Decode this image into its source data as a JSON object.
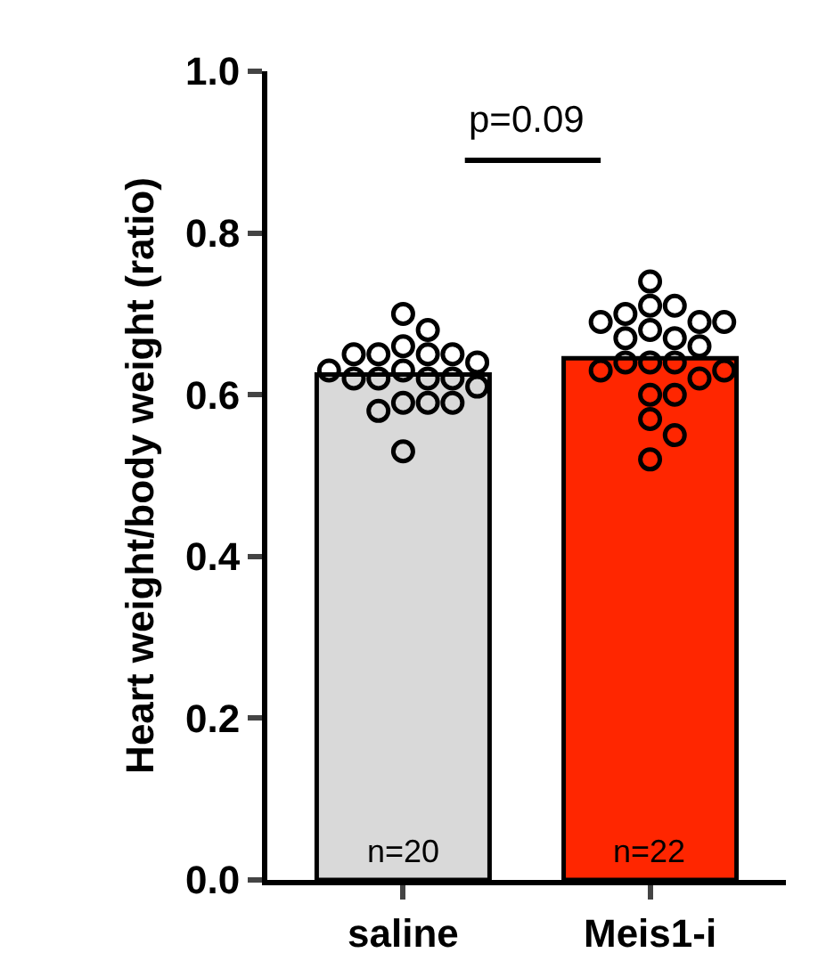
{
  "chart_data": {
    "type": "bar",
    "ylabel": "Heart weight/body weight (ratio)",
    "categories": [
      "saline",
      "Meis1-i"
    ],
    "values": [
      0.625,
      0.645
    ],
    "colors": [
      "#d9d9d9",
      "#ff2600"
    ],
    "ylim": [
      0,
      1.0
    ],
    "yticks": [
      {
        "value": 0,
        "label": "0.0"
      },
      0.2,
      0.4,
      0.6,
      0.8,
      {
        "value": 1,
        "label": "1.0"
      }
    ],
    "grid": false,
    "marker": "circle",
    "series": [
      {
        "type": "scatter",
        "color": "#000000",
        "x": [
          "saline",
          "saline",
          "saline",
          "saline",
          "saline",
          "saline",
          "saline",
          "saline",
          "saline",
          "saline",
          "saline",
          "saline",
          "saline",
          "saline",
          "saline",
          "saline",
          "saline",
          "saline",
          "saline",
          "saline"
        ],
        "values": [
          0.7,
          0.68,
          0.66,
          0.65,
          0.65,
          0.65,
          0.65,
          0.64,
          0.63,
          0.63,
          0.62,
          0.62,
          0.62,
          0.62,
          0.61,
          0.59,
          0.59,
          0.58,
          0.59,
          0.53
        ]
      },
      {
        "type": "scatter",
        "color": "#000000",
        "x": [
          "Meis1-i",
          "Meis1-i",
          "Meis1-i",
          "Meis1-i",
          "Meis1-i",
          "Meis1-i",
          "Meis1-i",
          "Meis1-i",
          "Meis1-i",
          "Meis1-i",
          "Meis1-i",
          "Meis1-i",
          "Meis1-i",
          "Meis1-i",
          "Meis1-i",
          "Meis1-i",
          "Meis1-i",
          "Meis1-i",
          "Meis1-i",
          "Meis1-i",
          "Meis1-i",
          "Meis1-i"
        ],
        "values": [
          0.74,
          0.71,
          0.71,
          0.7,
          0.69,
          0.69,
          0.69,
          0.68,
          0.67,
          0.67,
          0.66,
          0.64,
          0.64,
          0.64,
          0.62,
          0.63,
          0.63,
          0.6,
          0.6,
          0.57,
          0.55,
          0.52
        ]
      }
    ],
    "annotations": [
      "p=0.09",
      "n=20",
      "n=22"
    ]
  }
}
